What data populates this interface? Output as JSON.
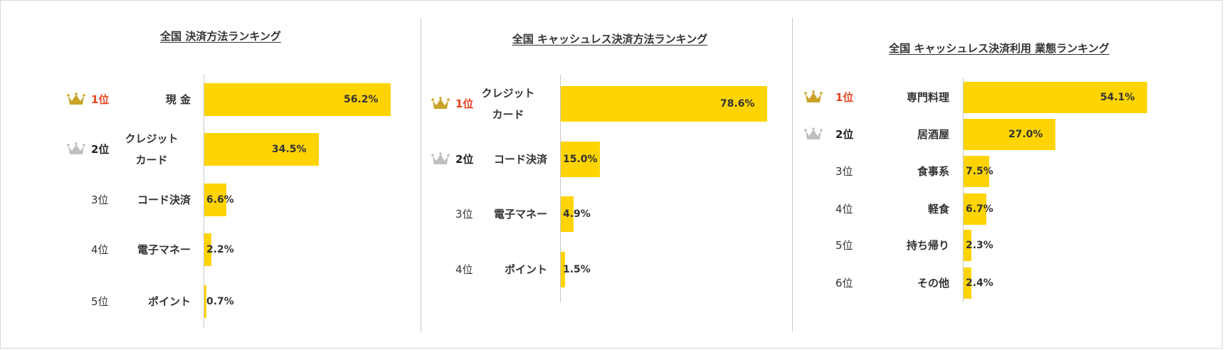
{
  "colors": {
    "bar": "#FFD400",
    "first_rank_text": "#E8421F",
    "gold_crown": "#C9A227",
    "silver_crown": "#BFBFBF"
  },
  "chart_data": [
    {
      "type": "bar",
      "orientation": "horizontal",
      "title": "全国 決済方法ランキング",
      "ranks": [
        "1位",
        "2位",
        "3位",
        "4位",
        "5位"
      ],
      "categories": [
        "現 金",
        "クレジット\nカード",
        "コード決済",
        "電子マネー",
        "ポイント"
      ],
      "values": [
        56.2,
        34.5,
        6.6,
        2.2,
        0.7
      ],
      "labels": [
        "56.2%",
        "34.5%",
        "6.6%",
        "2.2%",
        "0.7%"
      ],
      "unit": "%",
      "xlim": [
        0,
        56.2
      ]
    },
    {
      "type": "bar",
      "orientation": "horizontal",
      "title": "全国 キャッシュレス決済方法ランキング",
      "ranks": [
        "1位",
        "2位",
        "3位",
        "4位"
      ],
      "categories": [
        "クレジット\nカード",
        "コード決済",
        "電子マネー",
        "ポイント"
      ],
      "values": [
        78.6,
        15.0,
        4.9,
        1.5
      ],
      "labels": [
        "78.6%",
        "15.0%",
        "4.9%",
        "1.5%"
      ],
      "unit": "%",
      "xlim": [
        0,
        78.6
      ]
    },
    {
      "type": "bar",
      "orientation": "horizontal",
      "title": "全国 キャッシュレス決済利用 業態ランキング",
      "ranks": [
        "1位",
        "2位",
        "3位",
        "4位",
        "5位",
        "6位"
      ],
      "categories": [
        "専門料理",
        "居酒屋",
        "食事系",
        "軽食",
        "持ち帰り",
        "その他"
      ],
      "values": [
        54.1,
        27.0,
        7.5,
        6.7,
        2.3,
        2.4
      ],
      "labels": [
        "54.1%",
        "27.0%",
        "7.5%",
        "6.7%",
        "2.3%",
        "2.4%"
      ],
      "unit": "%",
      "xlim": [
        0,
        54.1
      ]
    }
  ]
}
